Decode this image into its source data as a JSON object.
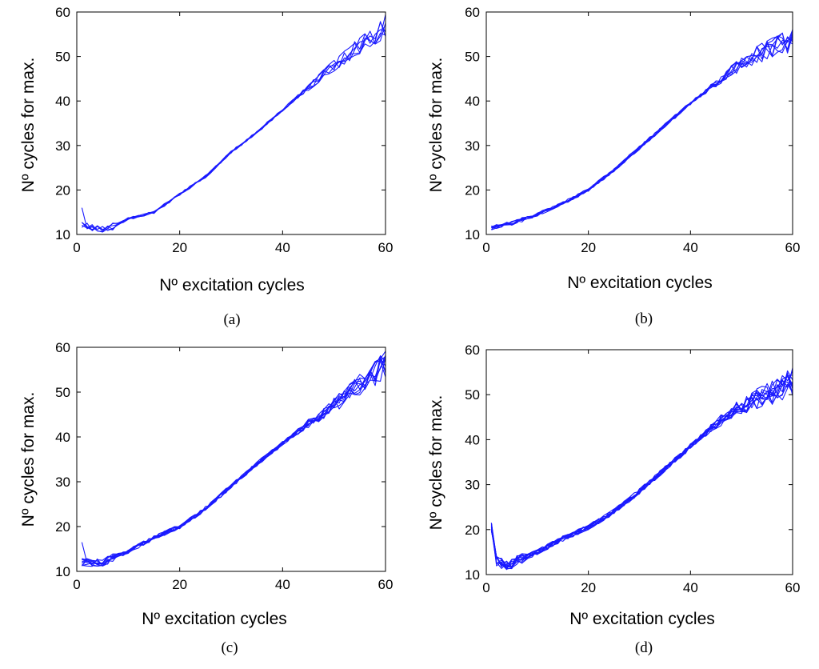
{
  "figure": {
    "line_color": "#1a1aff"
  },
  "chart_data": [
    {
      "type": "line",
      "caption": "(a)",
      "xlabel": "Nº excitation cycles",
      "ylabel": "Nº cycles for max.",
      "xlim": [
        0,
        60
      ],
      "ylim": [
        10,
        60
      ],
      "xticks": [
        0,
        20,
        40,
        60
      ],
      "yticks": [
        10,
        20,
        30,
        40,
        50,
        60
      ],
      "grid": false,
      "series_count": 6,
      "noise": {
        "start_spike": 16,
        "early": 0.8,
        "mid": 0.3,
        "late": 2.5
      },
      "mean_trend": [
        [
          1,
          12
        ],
        [
          3,
          11.5
        ],
        [
          6,
          11.2
        ],
        [
          10,
          13.5
        ],
        [
          15,
          15
        ],
        [
          20,
          19
        ],
        [
          25,
          23
        ],
        [
          30,
          28.5
        ],
        [
          35,
          33
        ],
        [
          40,
          38
        ],
        [
          45,
          43
        ],
        [
          50,
          48
        ],
        [
          55,
          52.5
        ],
        [
          58,
          54.5
        ],
        [
          60,
          57
        ]
      ]
    },
    {
      "type": "line",
      "caption": "(b)",
      "xlabel": "Nº excitation cycles",
      "ylabel": "Nº cycles for max.",
      "xlim": [
        0,
        60
      ],
      "ylim": [
        10,
        60
      ],
      "xticks": [
        0,
        20,
        40,
        60
      ],
      "yticks": [
        10,
        20,
        30,
        40,
        50,
        60
      ],
      "grid": false,
      "series_count": 8,
      "noise": {
        "start_spike": 0,
        "early": 0.5,
        "mid": 0.4,
        "late": 3.0
      },
      "mean_trend": [
        [
          1,
          11.5
        ],
        [
          5,
          12.5
        ],
        [
          10,
          14.5
        ],
        [
          15,
          17
        ],
        [
          20,
          20
        ],
        [
          25,
          24.5
        ],
        [
          30,
          29.5
        ],
        [
          35,
          34.5
        ],
        [
          40,
          39.5
        ],
        [
          45,
          44
        ],
        [
          50,
          48.5
        ],
        [
          55,
          51.5
        ],
        [
          60,
          53.5
        ]
      ]
    },
    {
      "type": "line",
      "caption": "(c)",
      "xlabel": "Nº excitation  cycles",
      "ylabel": "Nº cycles for max.",
      "xlim": [
        0,
        60
      ],
      "ylim": [
        10,
        60
      ],
      "xticks": [
        0,
        20,
        40,
        60
      ],
      "yticks": [
        10,
        20,
        30,
        40,
        50,
        60
      ],
      "grid": false,
      "series_count": 10,
      "noise": {
        "start_spike": 16.5,
        "early": 0.9,
        "mid": 0.5,
        "late": 3.2
      },
      "mean_trend": [
        [
          1,
          12
        ],
        [
          5,
          12
        ],
        [
          10,
          14.5
        ],
        [
          15,
          17.5
        ],
        [
          20,
          20
        ],
        [
          25,
          24
        ],
        [
          30,
          29
        ],
        [
          35,
          34
        ],
        [
          40,
          38.5
        ],
        [
          45,
          43
        ],
        [
          50,
          47
        ],
        [
          55,
          51.5
        ],
        [
          60,
          56
        ]
      ]
    },
    {
      "type": "line",
      "caption": "(d)",
      "xlabel": "Nº excitation  cycles",
      "ylabel": "Nº cycles for max.",
      "xlim": [
        0,
        60
      ],
      "ylim": [
        10,
        60
      ],
      "xticks": [
        0,
        20,
        40,
        60
      ],
      "yticks": [
        10,
        20,
        30,
        40,
        50,
        60
      ],
      "grid": false,
      "series_count": 12,
      "noise": {
        "start_spike": 21,
        "early": 1.2,
        "mid": 0.6,
        "late": 3.5
      },
      "mean_trend": [
        [
          0.5,
          21
        ],
        [
          1,
          20.5
        ],
        [
          2,
          13
        ],
        [
          4,
          12
        ],
        [
          7,
          13.5
        ],
        [
          10,
          15
        ],
        [
          15,
          18
        ],
        [
          20,
          20.5
        ],
        [
          25,
          24
        ],
        [
          30,
          28.5
        ],
        [
          35,
          33.5
        ],
        [
          40,
          38.5
        ],
        [
          45,
          43.5
        ],
        [
          50,
          47.5
        ],
        [
          55,
          50
        ],
        [
          60,
          52.5
        ]
      ]
    }
  ]
}
